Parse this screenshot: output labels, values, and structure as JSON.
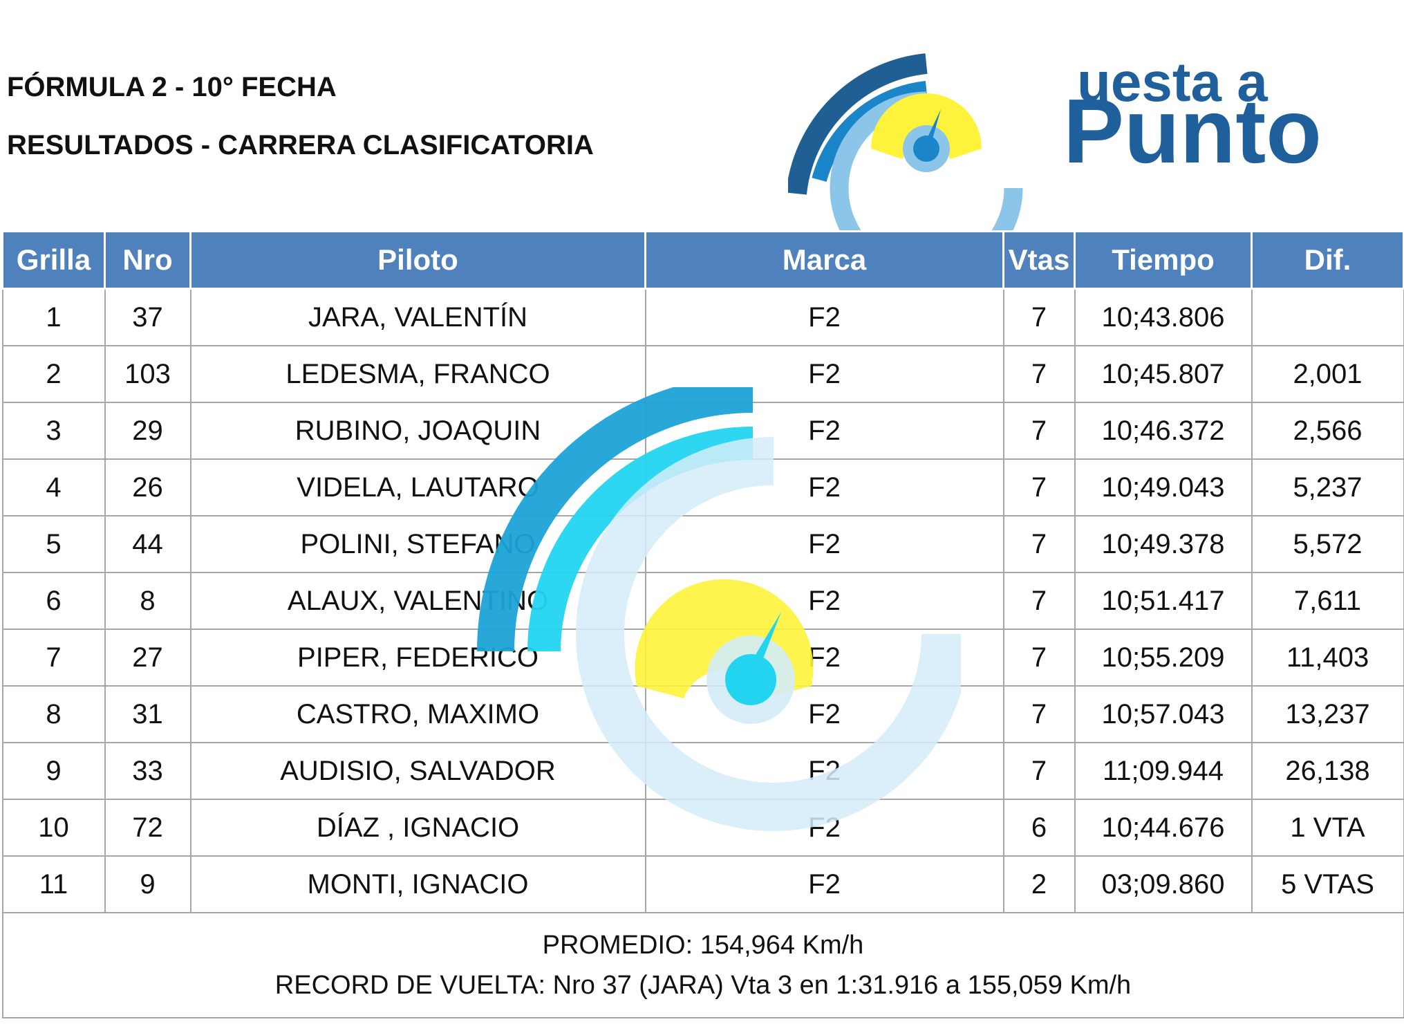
{
  "header": {
    "title_line1": "FÓRMULA 2 - 10° FECHA",
    "title_line2": "RESULTADOS - CARRERA CLASIFICATORIA"
  },
  "logo": {
    "word1": "uesta a",
    "word2": "Punto",
    "brand_color": "#1e5f9c",
    "icon_colors": {
      "dark_arc": "#1f5f94",
      "mid_arc": "#1a86c9",
      "light_ring": "#8cc5ea",
      "gauge": "#fff23a",
      "hub": "#1a86c9"
    }
  },
  "watermark": {
    "icon": "speedometer-watermark-icon",
    "colors": {
      "outer_arc": "#1ba3d6",
      "inner_arc": "#22d4f0",
      "ring": "#d3ecf8",
      "gauge": "#fff23a",
      "hub": "#22d4f0"
    }
  },
  "table": {
    "header_color": "#4f81bd",
    "columns": [
      "Grilla",
      "Nro",
      "Piloto",
      "Marca",
      "Vtas",
      "Tiempo",
      "Dif."
    ],
    "rows": [
      [
        "1",
        "37",
        "JARA, VALENTÍN",
        "F2",
        "7",
        "10;43.806",
        ""
      ],
      [
        "2",
        "103",
        "LEDESMA, FRANCO",
        "F2",
        "7",
        "10;45.807",
        "2,001"
      ],
      [
        "3",
        "29",
        "RUBINO, JOAQUIN",
        "F2",
        "7",
        "10;46.372",
        "2,566"
      ],
      [
        "4",
        "26",
        "VIDELA, LAUTARO",
        "F2",
        "7",
        "10;49.043",
        "5,237"
      ],
      [
        "5",
        "44",
        "POLINI, STEFANO",
        "F2",
        "7",
        "10;49.378",
        "5,572"
      ],
      [
        "6",
        "8",
        "ALAUX, VALENTINO",
        "F2",
        "7",
        "10;51.417",
        "7,611"
      ],
      [
        "7",
        "27",
        "PIPER, FEDERICO",
        "F2",
        "7",
        "10;55.209",
        "11,403"
      ],
      [
        "8",
        "31",
        "CASTRO, MAXIMO",
        "F2",
        "7",
        "10;57.043",
        "13,237"
      ],
      [
        "9",
        "33",
        "AUDISIO, SALVADOR",
        "F2",
        "7",
        "11;09.944",
        "26,138"
      ],
      [
        "10",
        "72",
        "DÍAZ , IGNACIO",
        "F2",
        "6",
        "10;44.676",
        "1 VTA"
      ],
      [
        "11",
        "9",
        "MONTI, IGNACIO",
        "F2",
        "2",
        "03;09.860",
        "5 VTAS"
      ]
    ]
  },
  "footer": {
    "promedio": "PROMEDIO: 154,964 Km/h",
    "record": "RECORD DE VUELTA: Nro 37 (JARA) Vta 3 en 1:31.916 a 155,059 Km/h"
  }
}
